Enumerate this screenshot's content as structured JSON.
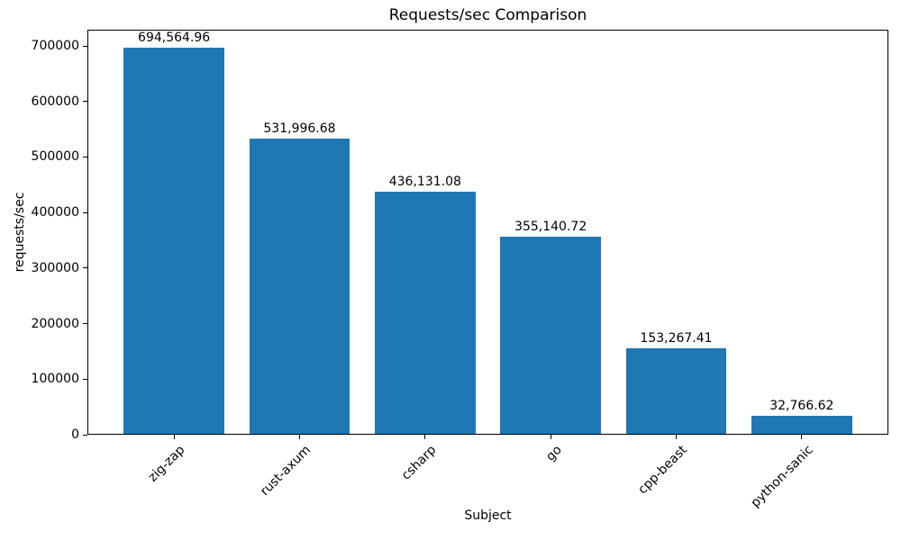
{
  "chart_data": {
    "type": "bar",
    "title": "Requests/sec Comparison",
    "xlabel": "Subject",
    "ylabel": "requests/sec",
    "categories": [
      "zig-zap",
      "rust-axum",
      "csharp",
      "go",
      "cpp-beast",
      "python-sanic"
    ],
    "values": [
      694564.96,
      531996.68,
      436131.08,
      355140.72,
      153267.41,
      32766.62
    ],
    "bar_labels": [
      "694,564.96",
      "531,996.68",
      "436,131.08",
      "355,140.72",
      "153,267.41",
      "32,766.62"
    ],
    "yticks": [
      0,
      100000,
      200000,
      300000,
      400000,
      500000,
      600000,
      700000
    ],
    "ytick_labels": [
      "0",
      "100000",
      "200000",
      "300000",
      "400000",
      "500000",
      "600000",
      "700000"
    ],
    "ylim": [
      0,
      729293
    ],
    "bar_color": "#1f77b4",
    "axis_color": "#000000",
    "background_color": "#ffffff",
    "grid": false,
    "legend_position": "none",
    "bar_width_fraction": 0.8,
    "x_tick_rotation_deg": 45
  }
}
